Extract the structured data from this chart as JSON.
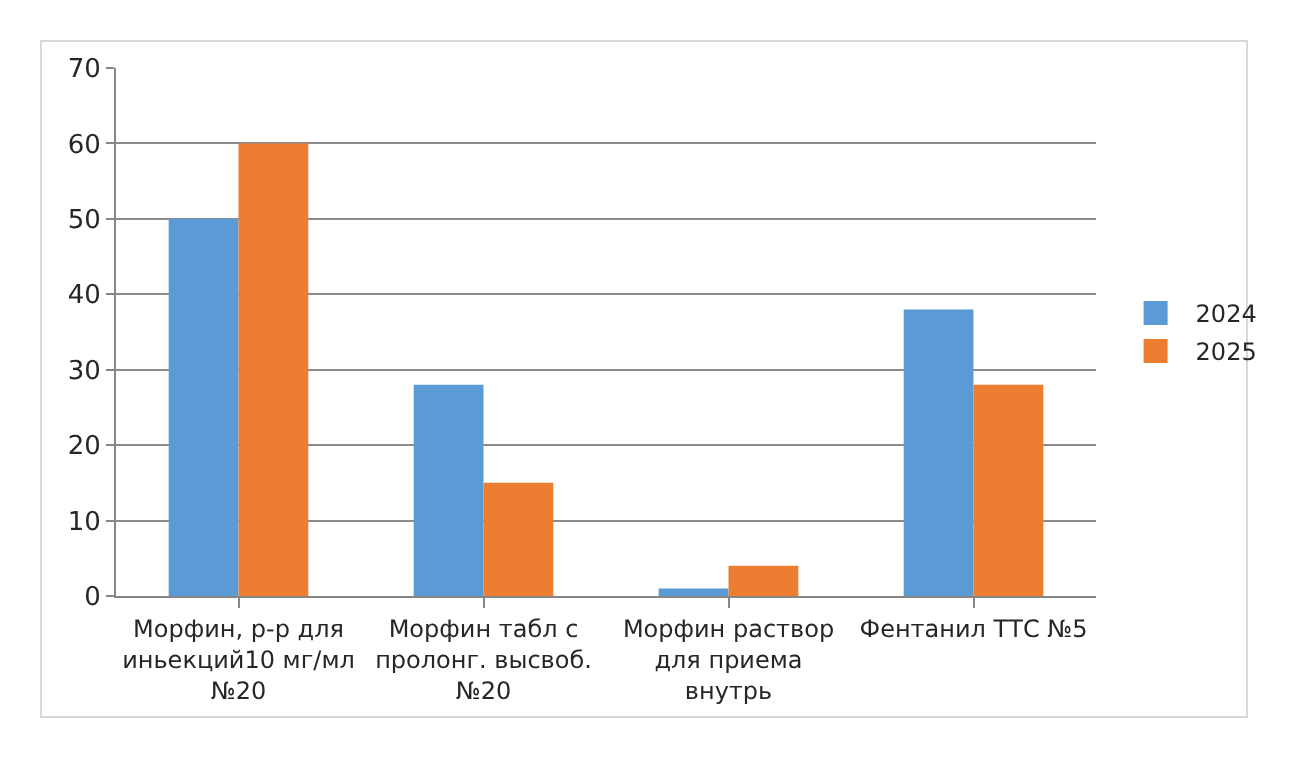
{
  "chart_data": {
    "type": "bar",
    "categories": [
      "Морфин, р-р для иньекций10 мг/мл №20",
      "Морфин табл с пролонг. высвоб. №20",
      "Морфин раствор для приема внутрь",
      "Фентанил ТТС №5"
    ],
    "series": [
      {
        "name": "2024",
        "color": "#5b9bd5",
        "values": [
          50,
          28,
          1,
          38
        ]
      },
      {
        "name": "2025",
        "color": "#ed7d31",
        "values": [
          60,
          15,
          4,
          28
        ]
      }
    ],
    "ylim": [
      0,
      70
    ],
    "yticks": [
      0,
      10,
      20,
      30,
      40,
      50,
      60,
      70
    ],
    "grid": "y",
    "legend": "right"
  }
}
